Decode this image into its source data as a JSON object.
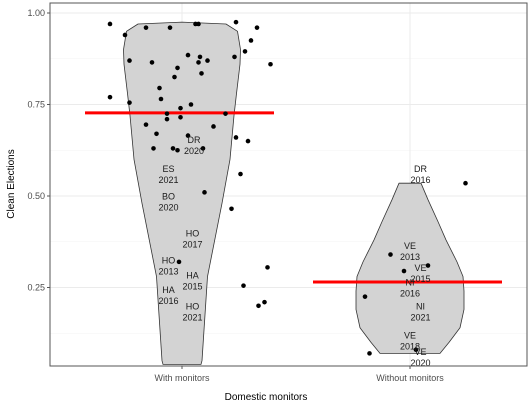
{
  "chart_data": {
    "type": "violin",
    "title": "",
    "xlabel": "Domestic monitors",
    "ylabel": "Clean Elections",
    "categories": [
      "With monitors",
      "Without monitors"
    ],
    "ylim": [
      0.05,
      1.0
    ],
    "yticks": [
      0.25,
      0.5,
      0.75,
      1.0
    ],
    "ytick_labels": [
      "0.25",
      "0.50",
      "0.75",
      "1.00"
    ],
    "grid": true,
    "colors": {
      "violin_fill": "#d3d3d3",
      "mean_line": "#ff0000",
      "point": "#000000",
      "panel_border": "#555555",
      "grid": "#ebebeb"
    },
    "series": [
      {
        "category": "With monitors",
        "mean": 0.727,
        "points": [
          {
            "x": -0.48,
            "y": 0.97
          },
          {
            "x": -0.48,
            "y": 0.77
          },
          {
            "x": -0.38,
            "y": 0.94
          },
          {
            "x": -0.35,
            "y": 0.87
          },
          {
            "x": -0.35,
            "y": 0.755
          },
          {
            "x": -0.24,
            "y": 0.96
          },
          {
            "x": -0.24,
            "y": 0.695
          },
          {
            "x": -0.2,
            "y": 0.865
          },
          {
            "x": -0.19,
            "y": 0.63
          },
          {
            "x": -0.17,
            "y": 0.67
          },
          {
            "x": -0.15,
            "y": 0.795
          },
          {
            "x": -0.14,
            "y": 0.765
          },
          {
            "x": -0.1,
            "y": 0.725
          },
          {
            "x": -0.1,
            "y": 0.71
          },
          {
            "x": -0.08,
            "y": 0.96
          },
          {
            "x": -0.06,
            "y": 0.63
          },
          {
            "x": -0.05,
            "y": 0.825
          },
          {
            "x": -0.03,
            "y": 0.625
          },
          {
            "x": -0.03,
            "y": 0.85
          },
          {
            "x": -0.01,
            "y": 0.74
          },
          {
            "x": -0.01,
            "y": 0.715
          },
          {
            "x": 0.04,
            "y": 0.885
          },
          {
            "x": 0.04,
            "y": 0.665
          },
          {
            "x": 0.06,
            "y": 0.75
          },
          {
            "x": 0.09,
            "y": 0.97
          },
          {
            "x": 0.11,
            "y": 0.97
          },
          {
            "x": 0.11,
            "y": 0.865
          },
          {
            "x": 0.12,
            "y": 0.88
          },
          {
            "x": 0.13,
            "y": 0.835
          },
          {
            "x": 0.14,
            "y": 0.63
          },
          {
            "x": 0.15,
            "y": 0.51
          },
          {
            "x": 0.17,
            "y": 0.87
          },
          {
            "x": 0.21,
            "y": 0.69
          },
          {
            "x": 0.29,
            "y": 0.725
          },
          {
            "x": 0.33,
            "y": 0.465
          },
          {
            "x": 0.35,
            "y": 0.88
          },
          {
            "x": 0.36,
            "y": 0.975
          },
          {
            "x": 0.36,
            "y": 0.66
          },
          {
            "x": 0.39,
            "y": 0.56
          },
          {
            "x": 0.41,
            "y": 0.255
          },
          {
            "x": 0.42,
            "y": 0.895
          },
          {
            "x": 0.44,
            "y": 0.65
          },
          {
            "x": 0.46,
            "y": 0.925
          },
          {
            "x": 0.5,
            "y": 0.96
          },
          {
            "x": 0.51,
            "y": 0.2
          },
          {
            "x": 0.55,
            "y": 0.21
          },
          {
            "x": 0.57,
            "y": 0.305
          },
          {
            "x": 0.59,
            "y": 0.86
          },
          {
            "x": -0.02,
            "y": 0.32
          }
        ],
        "labels": [
          {
            "text": [
              "DR",
              "2020"
            ],
            "x": 0.08,
            "y": 0.645
          },
          {
            "text": [
              "ES",
              "2021"
            ],
            "x": -0.09,
            "y": 0.565
          },
          {
            "text": [
              "BO",
              "2020"
            ],
            "x": -0.09,
            "y": 0.49
          },
          {
            "text": [
              "HO",
              "2017"
            ],
            "x": 0.07,
            "y": 0.39
          },
          {
            "text": [
              "HO",
              "2013"
            ],
            "x": -0.09,
            "y": 0.315
          },
          {
            "text": [
              "HA",
              "2015"
            ],
            "x": 0.07,
            "y": 0.275
          },
          {
            "text": [
              "HA",
              "2016"
            ],
            "x": -0.09,
            "y": 0.235
          },
          {
            "text": [
              "HO",
              "2021"
            ],
            "x": 0.07,
            "y": 0.19
          }
        ],
        "violin": [
          [
            0.04,
            0.19
          ],
          [
            0.05,
            0.2
          ],
          [
            0.28,
            0.255
          ],
          [
            0.48,
            0.4
          ],
          [
            0.6,
            0.48
          ],
          [
            0.72,
            0.52
          ],
          [
            0.78,
            0.545
          ],
          [
            0.86,
            0.58
          ],
          [
            0.9,
            0.585
          ],
          [
            0.95,
            0.555
          ],
          [
            0.97,
            0.44
          ],
          [
            0.975,
            0.0
          ]
        ]
      },
      {
        "category": "Without monitors",
        "mean": 0.265,
        "points": [
          {
            "x": -0.3,
            "y": 0.225
          },
          {
            "x": -0.27,
            "y": 0.07
          },
          {
            "x": -0.13,
            "y": 0.34
          },
          {
            "x": -0.04,
            "y": 0.295
          },
          {
            "x": 0.04,
            "y": 0.08
          },
          {
            "x": 0.12,
            "y": 0.31
          },
          {
            "x": 0.37,
            "y": 0.535
          }
        ],
        "labels": [
          {
            "text": [
              "DR",
              "2016"
            ],
            "x": 0.07,
            "y": 0.565
          },
          {
            "text": [
              "VE",
              "2013"
            ],
            "x": 0.0,
            "y": 0.355
          },
          {
            "text": [
              "VE",
              "2015"
            ],
            "x": 0.07,
            "y": 0.295
          },
          {
            "text": [
              "NI",
              "2016"
            ],
            "x": 0.0,
            "y": 0.255
          },
          {
            "text": [
              "NI",
              "2021"
            ],
            "x": 0.07,
            "y": 0.19
          },
          {
            "text": [
              "VE",
              "2018"
            ],
            "x": 0.0,
            "y": 0.11
          },
          {
            "text": [
              "VE",
              "2020"
            ],
            "x": 0.07,
            "y": 0.065
          }
        ],
        "violin": [
          [
            0.07,
            0.0
          ],
          [
            0.07,
            0.3
          ],
          [
            0.1,
            0.39
          ],
          [
            0.14,
            0.5
          ],
          [
            0.19,
            0.54
          ],
          [
            0.24,
            0.54
          ],
          [
            0.28,
            0.53
          ],
          [
            0.32,
            0.47
          ],
          [
            0.38,
            0.36
          ],
          [
            0.43,
            0.28
          ],
          [
            0.49,
            0.18
          ],
          [
            0.535,
            0.11
          ],
          [
            0.535,
            0.0
          ]
        ]
      }
    ]
  }
}
